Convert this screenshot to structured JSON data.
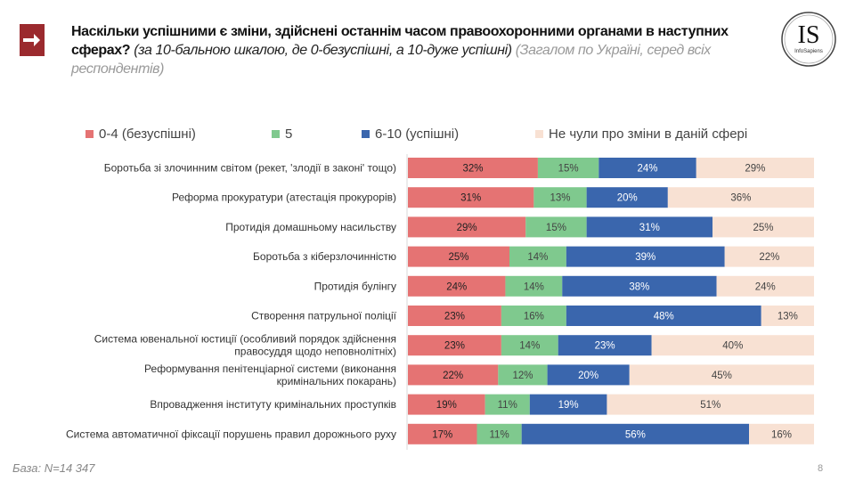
{
  "header": {
    "title_main": "Наскільки успішними є зміни, здійснені останнім часом правоохоронними органами в наступних сферах?",
    "title_scale": "(за 10-бальною шкалою, де 0-безуспішні, а 10-дуже успішні)",
    "title_scope": "(Загалом по Україні, серед всіх респондентів)",
    "logo_text": "IS",
    "logo_subtext": "InfoSapiens"
  },
  "footer": {
    "base": "База: N=14 347",
    "page_number": "8"
  },
  "chart_data": {
    "type": "bar",
    "orientation": "horizontal",
    "stacked": "percent",
    "legend_position": "top",
    "grid": false,
    "xlim": [
      0,
      100
    ],
    "categories": [
      "Боротьба зі злочинним світом (рекет, 'злодії в законі' тощо)",
      "Реформа прокуратури (атестація прокурорів)",
      "Протидія домашньому насильству",
      "Боротьба з кіберзлочинністю",
      "Протидія булінгу",
      "Створення патрульної поліції",
      "Система ювенальної юстиції (особливий порядок здійснення правосуддя щодо неповнолітніх)",
      "Реформування пенітенціарної системи (виконання кримінальних покарань)",
      "Впровадження інституту кримінальних проступків",
      "Система автоматичної фіксації порушень правил дорожнього руху"
    ],
    "series": [
      {
        "name": "0-4 (безуспішні)",
        "color": "#e57373",
        "label_color": "#222",
        "values": [
          32,
          31,
          29,
          25,
          24,
          23,
          23,
          22,
          19,
          17
        ]
      },
      {
        "name": "5",
        "color": "#7fc98e",
        "label_color": "#444",
        "values": [
          15,
          13,
          15,
          14,
          14,
          16,
          14,
          12,
          11,
          11
        ]
      },
      {
        "name": "6-10 (успішні)",
        "color": "#3a66ad",
        "label_color": "#fff",
        "values": [
          24,
          20,
          31,
          39,
          38,
          48,
          23,
          20,
          19,
          56
        ]
      },
      {
        "name": "Не чули про зміни в даній сфері",
        "color": "#f8e1d3",
        "label_color": "#444",
        "values": [
          29,
          36,
          25,
          22,
          24,
          13,
          40,
          45,
          51,
          16
        ]
      }
    ],
    "value_suffix": "%"
  }
}
